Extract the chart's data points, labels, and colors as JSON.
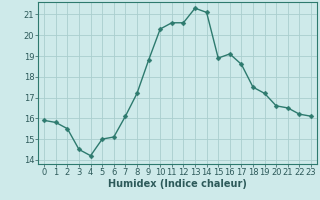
{
  "x": [
    0,
    1,
    2,
    3,
    4,
    5,
    6,
    7,
    8,
    9,
    10,
    11,
    12,
    13,
    14,
    15,
    16,
    17,
    18,
    19,
    20,
    21,
    22,
    23
  ],
  "y": [
    15.9,
    15.8,
    15.5,
    14.5,
    14.2,
    15.0,
    15.1,
    16.1,
    17.2,
    18.8,
    20.3,
    20.6,
    20.6,
    21.3,
    21.1,
    18.9,
    19.1,
    18.6,
    17.5,
    17.2,
    16.6,
    16.5,
    16.2,
    16.1
  ],
  "line_color": "#2d7a6e",
  "marker_color": "#2d7a6e",
  "bg_color": "#ceeaea",
  "grid_color": "#aacece",
  "xlabel": "Humidex (Indice chaleur)",
  "xlim": [
    -0.5,
    23.5
  ],
  "ylim": [
    13.8,
    21.6
  ],
  "yticks": [
    14,
    15,
    16,
    17,
    18,
    19,
    20,
    21
  ],
  "xticks": [
    0,
    1,
    2,
    3,
    4,
    5,
    6,
    7,
    8,
    9,
    10,
    11,
    12,
    13,
    14,
    15,
    16,
    17,
    18,
    19,
    20,
    21,
    22,
    23
  ],
  "xlabel_fontsize": 7,
  "tick_fontsize": 6,
  "linewidth": 1.0,
  "markersize": 2.5,
  "spine_color": "#2d7a6e"
}
